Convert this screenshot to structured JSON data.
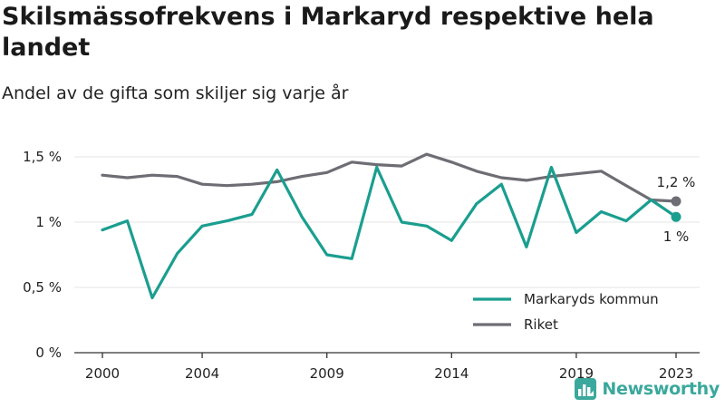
{
  "header": {
    "title": "Skilsmässofrekvens i Markaryd respektive hela landet",
    "subtitle": "Andel av de gifta som skiljer sig varje år"
  },
  "logo": {
    "text": "Newsworthy",
    "icon": "bar-chart-logo-icon",
    "color": "#3aa89c"
  },
  "chart_data": {
    "type": "line",
    "x": [
      2000,
      2001,
      2002,
      2003,
      2004,
      2005,
      2006,
      2007,
      2008,
      2009,
      2010,
      2011,
      2012,
      2013,
      2014,
      2015,
      2016,
      2017,
      2018,
      2019,
      2020,
      2021,
      2022,
      2023
    ],
    "series": [
      {
        "name": "Markaryds kommun",
        "color": "#1a9e8f",
        "values": [
          0.94,
          1.01,
          0.42,
          0.76,
          0.97,
          1.01,
          1.06,
          1.4,
          1.04,
          0.75,
          0.72,
          1.42,
          1.0,
          0.97,
          0.86,
          1.14,
          1.29,
          0.81,
          1.42,
          0.92,
          1.08,
          1.01,
          1.17,
          1.04
        ],
        "end_label": "1 %"
      },
      {
        "name": "Riket",
        "color": "#6e6d74",
        "values": [
          1.36,
          1.34,
          1.36,
          1.35,
          1.29,
          1.28,
          1.29,
          1.31,
          1.35,
          1.38,
          1.46,
          1.44,
          1.43,
          1.52,
          1.46,
          1.39,
          1.34,
          1.32,
          1.35,
          1.37,
          1.39,
          1.28,
          1.17,
          1.16
        ],
        "end_label": "1,2 %"
      }
    ],
    "xticks": [
      {
        "value": 2000,
        "label": "2000"
      },
      {
        "value": 2004,
        "label": "2004"
      },
      {
        "value": 2009,
        "label": "2009"
      },
      {
        "value": 2014,
        "label": "2014"
      },
      {
        "value": 2019,
        "label": "2019"
      },
      {
        "value": 2023,
        "label": "2023"
      }
    ],
    "yticks": [
      {
        "value": 0,
        "label": "0 %"
      },
      {
        "value": 0.5,
        "label": "0,5 %"
      },
      {
        "value": 1,
        "label": "1 %"
      },
      {
        "value": 1.5,
        "label": "1,5 %"
      }
    ],
    "xlim": [
      2000,
      2023
    ],
    "ylim": [
      0,
      1.5
    ],
    "grid": "horizontal",
    "gridColor": "#e6e6e6",
    "axisColor": "#333333",
    "legend": {
      "position": "bottom-right"
    }
  }
}
